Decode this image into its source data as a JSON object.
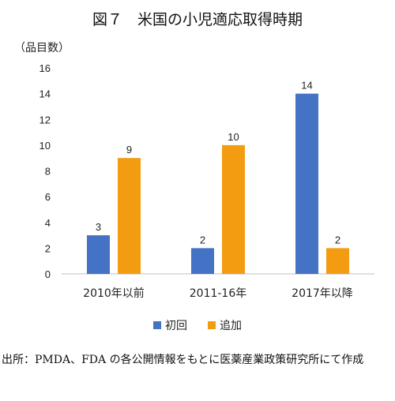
{
  "figure": {
    "title": "図７　米国の小児適応取得時期",
    "source": "出所：PMDA、FDA の各公開情報をもとに医薬産業政策研究所にて作成"
  },
  "chart_data": {
    "type": "bar",
    "ylabel": "（品目数）",
    "xlabel": "",
    "ylim": [
      0,
      16
    ],
    "yticks": [
      0,
      2,
      4,
      6,
      8,
      10,
      12,
      14,
      16
    ],
    "grid": false,
    "legend_position": "bottom",
    "categories": [
      "2010年以前",
      "2011-16年",
      "2017年以降"
    ],
    "series": [
      {
        "name": "初回",
        "values": [
          3,
          2,
          14
        ],
        "color": "#4472C4"
      },
      {
        "name": "追加",
        "values": [
          9,
          10,
          2
        ],
        "color": "#F39C12"
      }
    ]
  }
}
